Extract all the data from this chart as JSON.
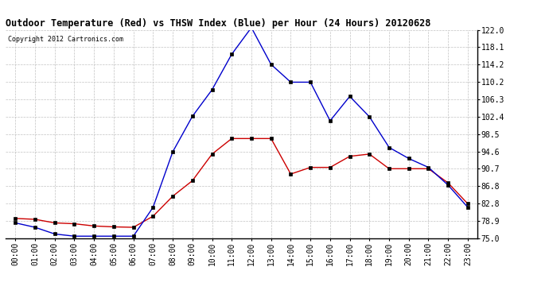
{
  "title": "Outdoor Temperature (Red) vs THSW Index (Blue) per Hour (24 Hours) 20120628",
  "copyright": "Copyright 2012 Cartronics.com",
  "hours": [
    "00:00",
    "01:00",
    "02:00",
    "03:00",
    "04:00",
    "05:00",
    "06:00",
    "07:00",
    "08:00",
    "09:00",
    "10:00",
    "11:00",
    "12:00",
    "13:00",
    "14:00",
    "15:00",
    "16:00",
    "17:00",
    "18:00",
    "19:00",
    "20:00",
    "21:00",
    "22:00",
    "23:00"
  ],
  "red_temp": [
    79.5,
    79.3,
    78.5,
    78.3,
    77.8,
    77.6,
    77.5,
    80.0,
    84.5,
    88.0,
    94.0,
    97.5,
    97.5,
    97.5,
    89.5,
    91.0,
    91.0,
    93.5,
    94.0,
    90.7,
    90.7,
    90.7,
    87.5,
    82.8
  ],
  "blue_thsw": [
    78.5,
    77.5,
    76.0,
    75.5,
    75.5,
    75.5,
    75.5,
    82.0,
    94.5,
    102.5,
    108.5,
    116.5,
    122.5,
    114.2,
    110.2,
    110.2,
    101.5,
    107.0,
    102.4,
    95.5,
    93.0,
    91.0,
    87.0,
    82.0
  ],
  "ylim": [
    75.0,
    122.0
  ],
  "yticks": [
    75.0,
    78.9,
    82.8,
    86.8,
    90.7,
    94.6,
    98.5,
    102.4,
    106.3,
    110.2,
    114.2,
    118.1,
    122.0
  ],
  "bg_color": "#ffffff",
  "grid_color": "#bbbbbb",
  "red_color": "#cc0000",
  "blue_color": "#0000cc",
  "title_fontsize": 8.5,
  "copyright_fontsize": 6.0,
  "tick_fontsize": 7.0
}
